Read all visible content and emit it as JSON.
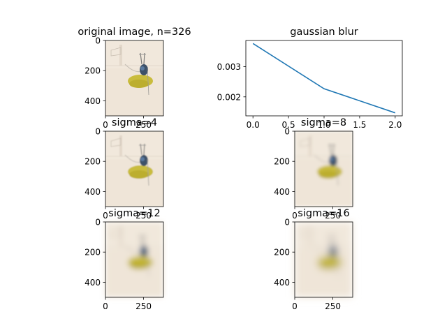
{
  "figure": {
    "background": "#ffffff"
  },
  "chart_data": [
    {
      "type": "image",
      "title": "original image, n=326",
      "sigma": 0,
      "xticks": [
        0,
        250
      ],
      "yticks": [
        0,
        200,
        400
      ]
    },
    {
      "type": "line",
      "title": "gaussian blur",
      "x": [
        0,
        1,
        2
      ],
      "series": [
        {
          "values": [
            0.00377,
            0.00227,
            0.00147
          ],
          "color": "#1f77b4"
        }
      ],
      "xlim": [
        -0.1,
        2.1
      ],
      "ylim": [
        0.00137,
        0.00387
      ],
      "xticks": [
        "0.0",
        "0.5",
        "1.0",
        "1.5",
        "2.0"
      ],
      "yticks": [
        "0.002",
        "0.003"
      ],
      "grid": false
    },
    {
      "type": "image",
      "title": "sigma=4",
      "sigma": 4,
      "xticks": [
        0,
        250
      ],
      "yticks": [
        0,
        200,
        400
      ]
    },
    {
      "type": "image",
      "title": "sigma=8",
      "sigma": 8,
      "xticks": [
        0,
        250
      ],
      "yticks": [
        0,
        200,
        400
      ]
    },
    {
      "type": "image",
      "title": "sigma=12",
      "sigma": 12,
      "xticks": [
        0,
        250
      ],
      "yticks": [
        0,
        200,
        400
      ]
    },
    {
      "type": "image",
      "title": "sigma=16",
      "sigma": 16,
      "xticks": [
        0,
        250
      ],
      "yticks": [
        0,
        200,
        400
      ]
    }
  ]
}
